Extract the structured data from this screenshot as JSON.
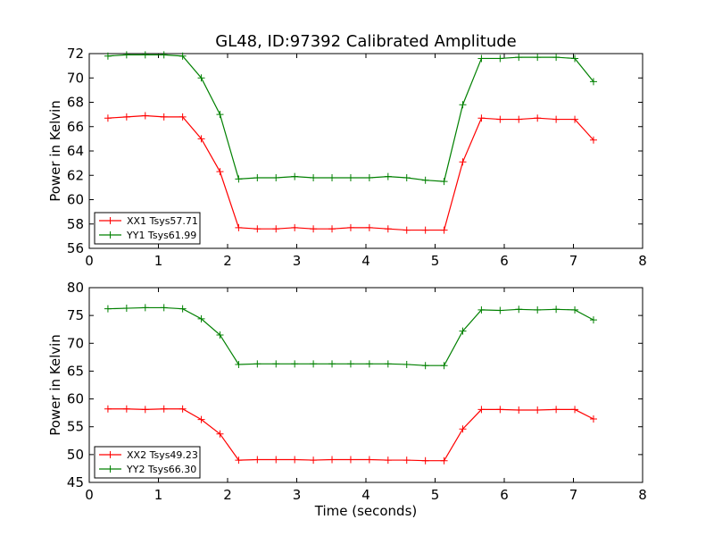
{
  "figure": {
    "title": "GL48, ID:97392 Calibrated Amplitude"
  },
  "chart_data": [
    {
      "type": "line",
      "title": "GL48, ID:97392 Calibrated Amplitude",
      "xlabel": "",
      "ylabel": "Power in Kelvin",
      "xlim": [
        0,
        8
      ],
      "ylim": [
        56,
        72
      ],
      "xticks": [
        0,
        1,
        2,
        3,
        4,
        5,
        6,
        7,
        8
      ],
      "yticks": [
        56,
        58,
        60,
        62,
        64,
        66,
        68,
        70,
        72
      ],
      "grid": false,
      "legend_position": "lower-left",
      "x": [
        0.27,
        0.54,
        0.81,
        1.08,
        1.35,
        1.62,
        1.89,
        2.16,
        2.43,
        2.7,
        2.97,
        3.24,
        3.51,
        3.78,
        4.05,
        4.32,
        4.59,
        4.86,
        5.13,
        5.4,
        5.67,
        5.94,
        6.21,
        6.48,
        6.75,
        7.02,
        7.29
      ],
      "series": [
        {
          "name": "XX1 Tsys57.71",
          "color": "#ff0000",
          "values": [
            66.7,
            66.8,
            66.9,
            66.8,
            66.8,
            65.0,
            62.3,
            57.7,
            57.6,
            57.6,
            57.7,
            57.6,
            57.6,
            57.7,
            57.7,
            57.6,
            57.5,
            57.5,
            57.5,
            63.1,
            66.7,
            66.6,
            66.6,
            66.7,
            66.6,
            66.6,
            64.9
          ]
        },
        {
          "name": "YY1 Tsys61.99",
          "color": "#008000",
          "values": [
            71.8,
            71.9,
            71.9,
            71.9,
            71.8,
            70.0,
            67.0,
            61.7,
            61.8,
            61.8,
            61.9,
            61.8,
            61.8,
            61.8,
            61.8,
            61.9,
            61.8,
            61.6,
            61.5,
            67.8,
            71.6,
            71.6,
            71.7,
            71.7,
            71.7,
            71.6,
            69.7
          ]
        }
      ]
    },
    {
      "type": "line",
      "title": "",
      "xlabel": "Time (seconds)",
      "ylabel": "Power in Kelvin",
      "xlim": [
        0,
        8
      ],
      "ylim": [
        45,
        80
      ],
      "xticks": [
        0,
        1,
        2,
        3,
        4,
        5,
        6,
        7,
        8
      ],
      "yticks": [
        45,
        50,
        55,
        60,
        65,
        70,
        75,
        80
      ],
      "grid": false,
      "legend_position": "lower-left",
      "x": [
        0.27,
        0.54,
        0.81,
        1.08,
        1.35,
        1.62,
        1.89,
        2.16,
        2.43,
        2.7,
        2.97,
        3.24,
        3.51,
        3.78,
        4.05,
        4.32,
        4.59,
        4.86,
        5.13,
        5.4,
        5.67,
        5.94,
        6.21,
        6.48,
        6.75,
        7.02,
        7.29
      ],
      "series": [
        {
          "name": "XX2 Tsys49.23",
          "color": "#ff0000",
          "values": [
            58.2,
            58.2,
            58.1,
            58.2,
            58.2,
            56.3,
            53.7,
            49.0,
            49.1,
            49.1,
            49.1,
            49.0,
            49.1,
            49.1,
            49.1,
            49.0,
            49.0,
            48.9,
            48.9,
            54.6,
            58.1,
            58.1,
            58.0,
            58.0,
            58.1,
            58.1,
            56.4
          ]
        },
        {
          "name": "YY2 Tsys66.30",
          "color": "#008000",
          "values": [
            76.2,
            76.3,
            76.4,
            76.4,
            76.2,
            74.4,
            71.5,
            66.2,
            66.3,
            66.3,
            66.3,
            66.3,
            66.3,
            66.3,
            66.3,
            66.3,
            66.2,
            66.0,
            66.0,
            72.2,
            76.0,
            75.9,
            76.1,
            76.0,
            76.1,
            76.0,
            74.2
          ]
        }
      ]
    }
  ]
}
